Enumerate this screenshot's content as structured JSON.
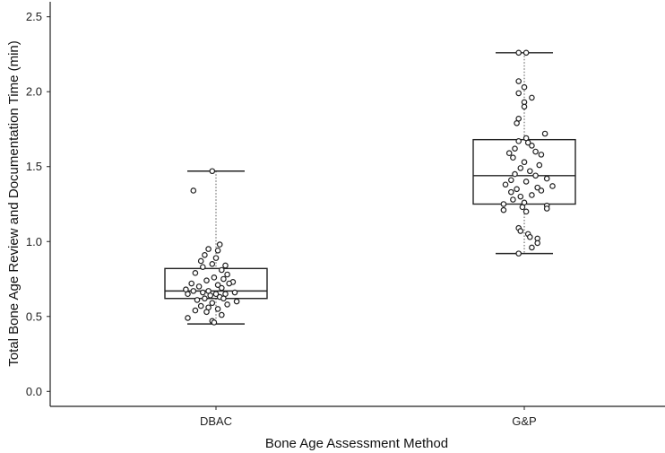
{
  "chart_data": {
    "type": "box",
    "title": "",
    "xlabel": "Bone Age Assessment Method",
    "ylabel": "Total Bone Age Review and Documentation Time (min)",
    "ylim": [
      -0.1,
      2.6
    ],
    "yticks": [
      "0.0",
      "0.5",
      "1.0",
      "1.5",
      "2.0",
      "2.5"
    ],
    "categories": [
      "DBAC",
      "G&P"
    ],
    "grid": false,
    "boxes": [
      {
        "category": "DBAC",
        "whisker_low": 0.45,
        "q1": 0.62,
        "median": 0.67,
        "q3": 0.82,
        "whisker_high": 1.47,
        "points": [
          [
            -0.02,
            1.47
          ],
          [
            -0.12,
            1.34
          ],
          [
            0.02,
            0.98
          ],
          [
            -0.04,
            0.95
          ],
          [
            0.01,
            0.94
          ],
          [
            -0.06,
            0.91
          ],
          [
            0.0,
            0.89
          ],
          [
            -0.08,
            0.87
          ],
          [
            -0.02,
            0.85
          ],
          [
            0.05,
            0.84
          ],
          [
            -0.07,
            0.83
          ],
          [
            0.03,
            0.81
          ],
          [
            -0.11,
            0.79
          ],
          [
            0.06,
            0.78
          ],
          [
            -0.01,
            0.76
          ],
          [
            0.04,
            0.75
          ],
          [
            -0.05,
            0.74
          ],
          [
            0.09,
            0.73
          ],
          [
            -0.13,
            0.72
          ],
          [
            0.07,
            0.72
          ],
          [
            0.01,
            0.71
          ],
          [
            -0.09,
            0.7
          ],
          [
            0.03,
            0.69
          ],
          [
            -0.16,
            0.68
          ],
          [
            -0.04,
            0.67
          ],
          [
            -0.12,
            0.67
          ],
          [
            0.1,
            0.66
          ],
          [
            -0.07,
            0.66
          ],
          [
            0.0,
            0.65
          ],
          [
            0.05,
            0.65
          ],
          [
            -0.15,
            0.65
          ],
          [
            -0.03,
            0.64
          ],
          [
            0.02,
            0.63
          ],
          [
            -0.06,
            0.62
          ],
          [
            0.04,
            0.62
          ],
          [
            -0.1,
            0.61
          ],
          [
            0.11,
            0.6
          ],
          [
            -0.02,
            0.59
          ],
          [
            0.06,
            0.58
          ],
          [
            -0.08,
            0.57
          ],
          [
            -0.04,
            0.56
          ],
          [
            0.01,
            0.55
          ],
          [
            -0.11,
            0.54
          ],
          [
            -0.05,
            0.53
          ],
          [
            0.03,
            0.51
          ],
          [
            -0.15,
            0.49
          ],
          [
            -0.02,
            0.47
          ],
          [
            -0.01,
            0.46
          ]
        ]
      },
      {
        "category": "G&P",
        "whisker_low": 0.92,
        "q1": 1.25,
        "median": 1.44,
        "q3": 1.68,
        "whisker_high": 2.26,
        "points": [
          [
            0.01,
            2.26
          ],
          [
            -0.03,
            2.26
          ],
          [
            -0.03,
            2.07
          ],
          [
            0.0,
            2.03
          ],
          [
            -0.03,
            1.99
          ],
          [
            0.04,
            1.96
          ],
          [
            0.0,
            1.93
          ],
          [
            0.0,
            1.9
          ],
          [
            -0.03,
            1.82
          ],
          [
            -0.04,
            1.79
          ],
          [
            0.11,
            1.72
          ],
          [
            0.01,
            1.69
          ],
          [
            -0.03,
            1.67
          ],
          [
            0.02,
            1.66
          ],
          [
            0.04,
            1.64
          ],
          [
            -0.05,
            1.62
          ],
          [
            0.06,
            1.6
          ],
          [
            -0.08,
            1.59
          ],
          [
            0.09,
            1.58
          ],
          [
            -0.06,
            1.56
          ],
          [
            0.0,
            1.53
          ],
          [
            0.08,
            1.51
          ],
          [
            -0.02,
            1.49
          ],
          [
            0.03,
            1.47
          ],
          [
            -0.05,
            1.45
          ],
          [
            0.06,
            1.44
          ],
          [
            0.12,
            1.42
          ],
          [
            -0.07,
            1.41
          ],
          [
            0.01,
            1.4
          ],
          [
            -0.1,
            1.38
          ],
          [
            0.15,
            1.37
          ],
          [
            0.07,
            1.36
          ],
          [
            -0.04,
            1.35
          ],
          [
            0.09,
            1.34
          ],
          [
            -0.07,
            1.33
          ],
          [
            0.04,
            1.31
          ],
          [
            -0.02,
            1.3
          ],
          [
            -0.06,
            1.28
          ],
          [
            0.0,
            1.26
          ],
          [
            -0.11,
            1.25
          ],
          [
            0.12,
            1.24
          ],
          [
            -0.01,
            1.23
          ],
          [
            0.12,
            1.22
          ],
          [
            -0.11,
            1.21
          ],
          [
            0.01,
            1.2
          ],
          [
            -0.03,
            1.09
          ],
          [
            -0.02,
            1.07
          ],
          [
            0.02,
            1.05
          ],
          [
            0.03,
            1.03
          ],
          [
            0.07,
            1.02
          ],
          [
            0.07,
            0.99
          ],
          [
            0.04,
            0.96
          ],
          [
            -0.03,
            0.92
          ]
        ]
      }
    ]
  }
}
